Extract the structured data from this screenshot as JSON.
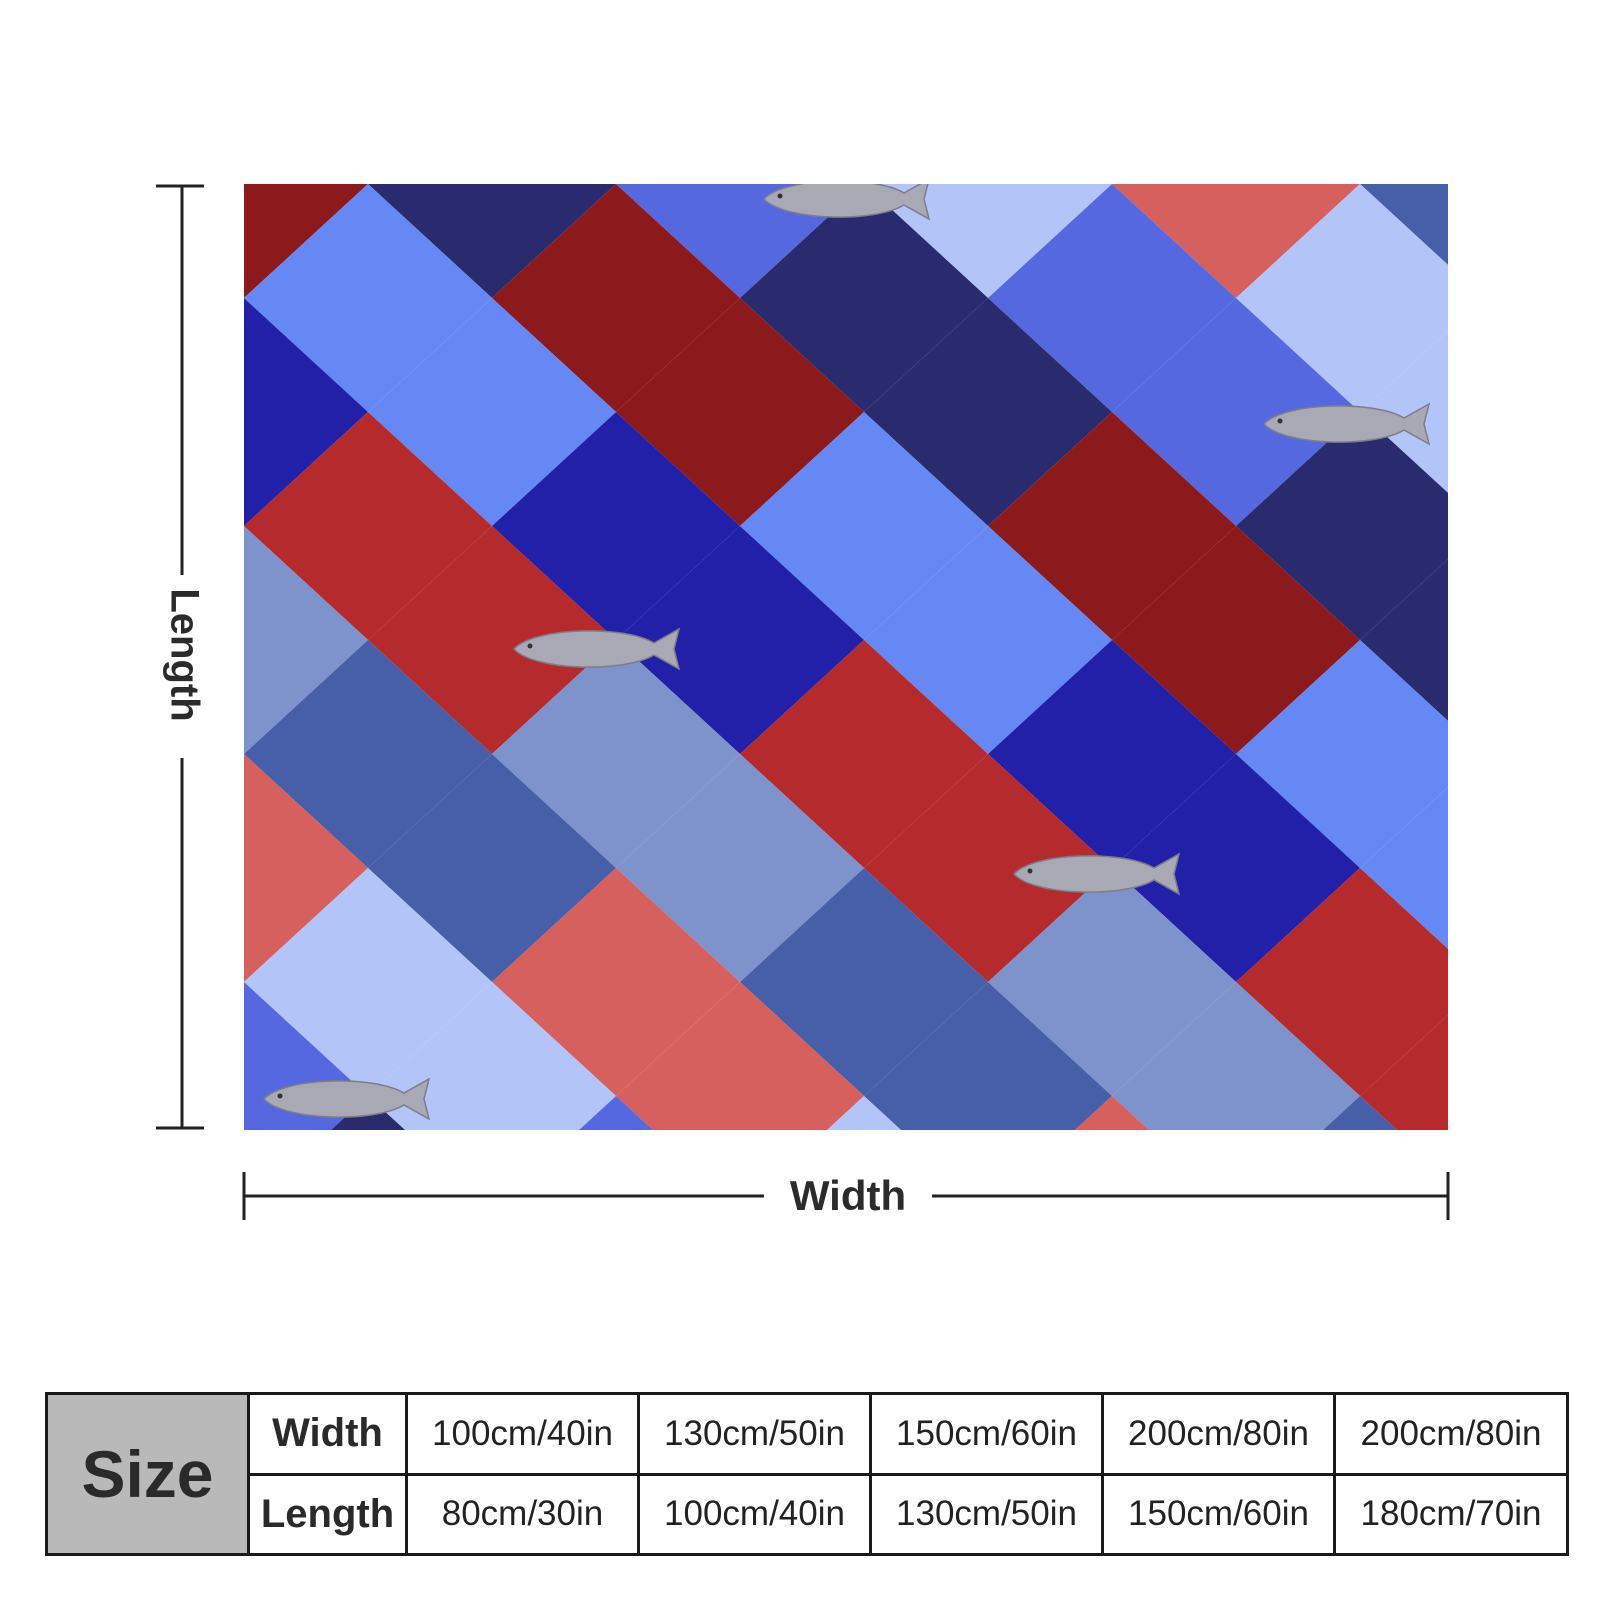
{
  "dimensions": {
    "length_label": "Length",
    "width_label": "Width"
  },
  "size_table": {
    "size_label": "Size",
    "rows": [
      {
        "label": "Width",
        "values": [
          "100cm/40in",
          "130cm/50in",
          "150cm/60in",
          "200cm/80in",
          "200cm/80in"
        ]
      },
      {
        "label": "Length",
        "values": [
          "80cm/30in",
          "100cm/40in",
          "130cm/50in",
          "150cm/60in",
          "180cm/70in"
        ]
      }
    ]
  },
  "pattern": {
    "colors": [
      "#8c1a1c",
      "#b52b2d",
      "#d6605d",
      "#2a2a6e",
      "#2220a8",
      "#465fa8",
      "#5668e0",
      "#6588f4",
      "#7e92cc",
      "#b3c4f8"
    ],
    "fish_color": "#a9a9b6",
    "fish_icon": "trout-icon"
  }
}
